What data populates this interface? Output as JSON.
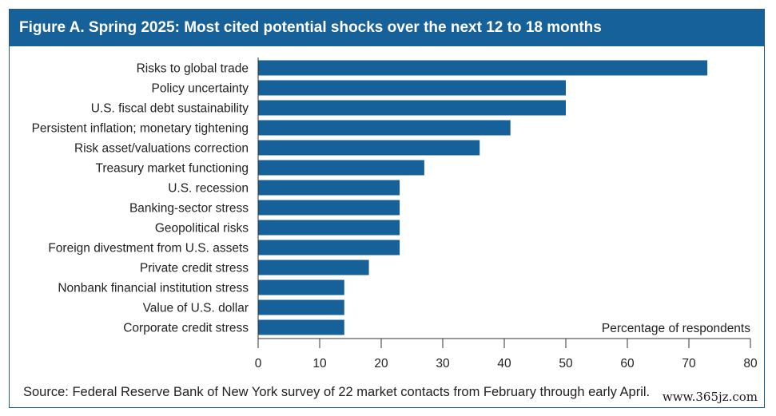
{
  "figure": {
    "title": "Figure A. Spring 2025: Most cited potential shocks over the next 12 to 18 months",
    "source": "Source: Federal Reserve Bank of New York survey of 22 market contacts from February through early April.",
    "watermark": "www.365jz.com"
  },
  "chart_data": {
    "type": "bar",
    "orientation": "horizontal",
    "title": "Figure A. Spring 2025: Most cited potential shocks over the next 12 to 18 months",
    "xlabel": "Percentage of respondents",
    "ylabel": "",
    "xlim": [
      0,
      80
    ],
    "xticks": [
      0,
      10,
      20,
      30,
      40,
      50,
      60,
      70,
      80
    ],
    "grid": false,
    "bar_color": "#17619a",
    "categories": [
      "Risks to global trade",
      "Policy uncertainty",
      "U.S. fiscal debt sustainability",
      "Persistent inflation; monetary tightening",
      "Risk asset/valuations correction",
      "Treasury market functioning",
      "U.S. recession",
      "Banking-sector stress",
      "Geopolitical risks",
      "Foreign divestment from U.S. assets",
      "Private credit stress",
      "Nonbank financial institution stress",
      "Value of U.S. dollar",
      "Corporate credit stress"
    ],
    "values": [
      73,
      50,
      50,
      41,
      36,
      27,
      23,
      23,
      23,
      23,
      18,
      14,
      14,
      14
    ]
  }
}
